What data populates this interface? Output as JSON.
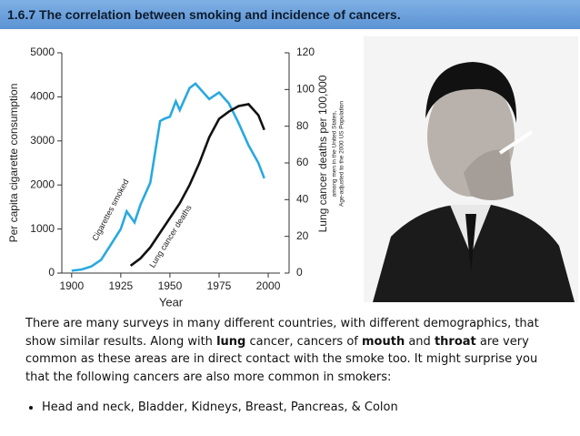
{
  "header": {
    "title": "1.6.7 The correlation between smoking and incidence of cancers."
  },
  "chart_data": {
    "type": "line",
    "xlabel": "Year",
    "ylabel": "Per capita cigarette consumption",
    "y2label": "Lung cancer deaths per 100,000",
    "y2sublabel": [
      "among men in the United States,",
      "Age-adjusted to the 2000 US Population"
    ],
    "xlim": [
      1895,
      2006
    ],
    "xticks": [
      1900,
      1925,
      1950,
      1975,
      2000
    ],
    "ylim": [
      0,
      5000
    ],
    "yticks": [
      0,
      1000,
      2000,
      3000,
      4000,
      5000
    ],
    "y2lim": [
      0,
      120
    ],
    "y2ticks": [
      0,
      20,
      40,
      60,
      80,
      100,
      120
    ],
    "series": [
      {
        "name": "Cigarettes smoked",
        "color": "#29a8e0",
        "x": [
          1900,
          1905,
          1910,
          1915,
          1920,
          1925,
          1928,
          1932,
          1935,
          1940,
          1945,
          1947,
          1950,
          1953,
          1955,
          1960,
          1963,
          1965,
          1970,
          1975,
          1980,
          1985,
          1990,
          1995,
          1998
        ],
        "values": [
          54,
          80,
          150,
          300,
          650,
          1000,
          1400,
          1150,
          1550,
          2050,
          3450,
          3500,
          3550,
          3900,
          3700,
          4200,
          4300,
          4200,
          3950,
          4100,
          3850,
          3400,
          2900,
          2500,
          2150
        ]
      },
      {
        "name": "Lung cancer deaths",
        "color": "#111111",
        "axis": "y2",
        "x": [
          1930,
          1935,
          1940,
          1945,
          1950,
          1955,
          1960,
          1965,
          1970,
          1975,
          1980,
          1985,
          1990,
          1995,
          1998
        ],
        "values": [
          4,
          8,
          14,
          22,
          30,
          38,
          48,
          60,
          74,
          84,
          88,
          91,
          92,
          86,
          78
        ]
      }
    ]
  },
  "text": {
    "paragraph": [
      {
        "text": "There are many surveys in many  different countries, with different demographics, that show similar results. Along with ",
        "bold": false
      },
      {
        "text": "lung",
        "bold": true
      },
      {
        "text": " cancer, cancers of ",
        "bold": false
      },
      {
        "text": "mouth",
        "bold": true
      },
      {
        "text": " and ",
        "bold": false
      },
      {
        "text": "throat",
        "bold": true
      },
      {
        "text": " are very common as these areas are in direct contact with the smoke too. It might surprise you that the following cancers are also more common in smokers:",
        "bold": false
      }
    ],
    "bullets": [
      "Head and neck, Bladder, Kidneys, Breast, Pancreas, & Colon"
    ]
  }
}
